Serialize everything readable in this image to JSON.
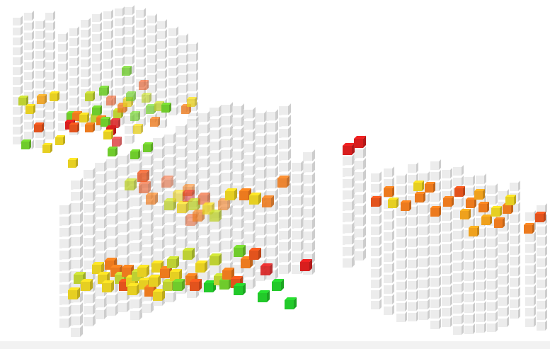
{
  "palette": {
    "inactive_face": "#e6e6e6",
    "inactive_edge": "#d2d2d2",
    "red": "#d81e1e",
    "orange_red": "#e2531d",
    "orange": "#ec7a1e",
    "amber": "#efa11d",
    "yellow": "#e6cf22",
    "yellow_green": "#bdd033",
    "green": "#6fcb2c",
    "bright_green": "#22c92a"
  },
  "clusters": [
    {
      "name": "upper-left-cluster"
    },
    {
      "name": "lower-left-cluster"
    },
    {
      "name": "center-pillar"
    },
    {
      "name": "right-cluster"
    }
  ]
}
